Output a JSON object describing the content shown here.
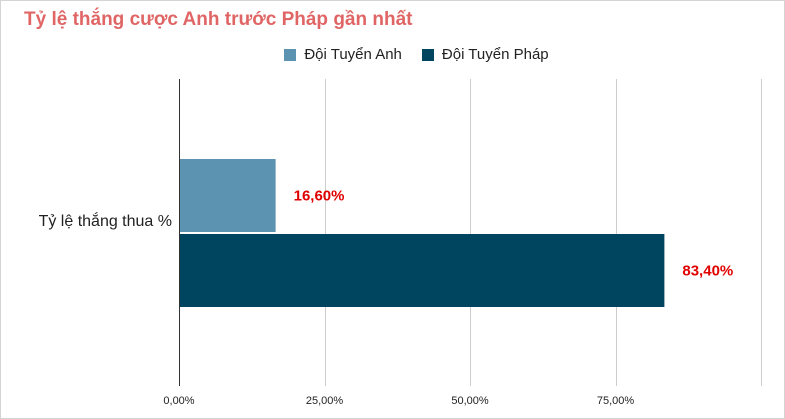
{
  "chart_data": {
    "type": "bar",
    "orientation": "horizontal",
    "title": "Tỷ lệ thắng cược Anh trước Pháp gần nhất",
    "categories": [
      "Tỷ lệ thắng thua %"
    ],
    "series": [
      {
        "name": "Đội Tuyển Anh",
        "values": [
          16.6
        ],
        "label": "16,60%",
        "color": "#5b93b0"
      },
      {
        "name": "Đội Tuyển Pháp",
        "values": [
          83.4
        ],
        "label": "83,40%",
        "color": "#00455f"
      }
    ],
    "xlim": [
      0,
      100
    ],
    "ticks": [
      {
        "value": 0,
        "label": "0,00%"
      },
      {
        "value": 25,
        "label": "25,00%"
      },
      {
        "value": 50,
        "label": "50,00%"
      },
      {
        "value": 75,
        "label": "75,00%"
      }
    ],
    "grid": true,
    "legend_position": "top",
    "colors": {
      "title": "#e06666",
      "data_label": "#e00000",
      "grid": "#cccccc"
    }
  }
}
